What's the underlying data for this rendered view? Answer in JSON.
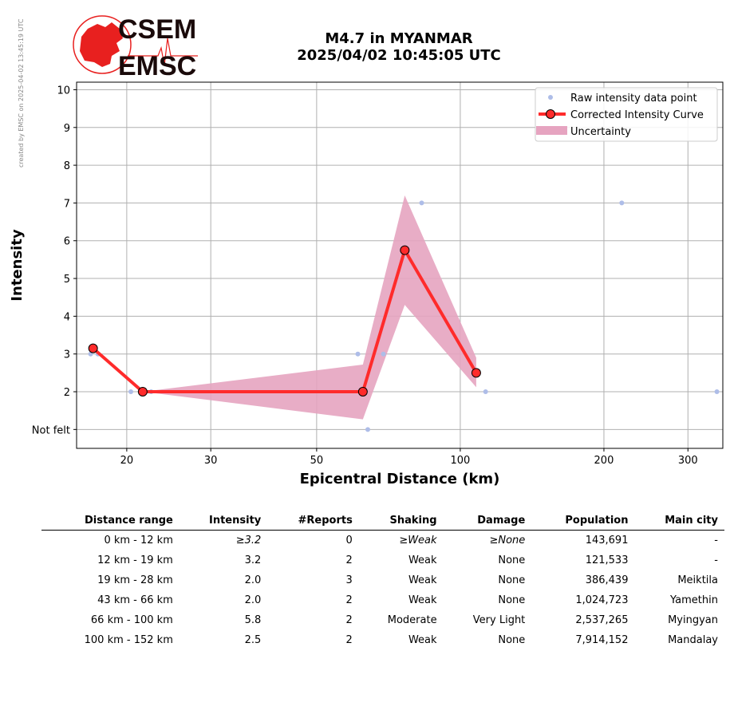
{
  "side_note": "created by EMSC on 2025-04-02 13:45:19 UTC",
  "logo": {
    "line1": "CSEM",
    "line2": "EMSC"
  },
  "title": {
    "line1": "M4.7 in MYANMAR",
    "line2": "2025/04/02 10:45:05 UTC"
  },
  "chart_data": {
    "type": "line",
    "xlabel": "Epicentral Distance (km)",
    "ylabel": "Intensity",
    "xscale": "log",
    "xlim": [
      15.7,
      355
    ],
    "ylim": [
      0.5,
      10.2
    ],
    "x_ticks": [
      20,
      30,
      50,
      100,
      200,
      300
    ],
    "y_ticks": [
      {
        "value": 1,
        "label": "Not felt"
      },
      {
        "value": 2,
        "label": "2"
      },
      {
        "value": 3,
        "label": "3"
      },
      {
        "value": 4,
        "label": "4"
      },
      {
        "value": 5,
        "label": "5"
      },
      {
        "value": 6,
        "label": "6"
      },
      {
        "value": 7,
        "label": "7"
      },
      {
        "value": 8,
        "label": "8"
      },
      {
        "value": 9,
        "label": "9"
      },
      {
        "value": 10,
        "label": "10"
      }
    ],
    "grid": true,
    "legend_position": "top-right",
    "legend": [
      "Raw intensity data point",
      "Corrected Intensity Curve",
      "Uncertainty"
    ],
    "series": [
      {
        "name": "Raw intensity data point",
        "kind": "scatter",
        "color": "#aebde8",
        "points": [
          [
            16.8,
            3
          ],
          [
            17.4,
            3
          ],
          [
            20.4,
            2
          ],
          [
            22.5,
            2
          ],
          [
            61,
            3
          ],
          [
            69,
            3
          ],
          [
            64,
            1
          ],
          [
            83,
            7
          ],
          [
            113,
            2
          ],
          [
            218,
            7
          ],
          [
            345,
            2
          ]
        ]
      },
      {
        "name": "Corrected Intensity Curve",
        "kind": "line",
        "color": "#ff2b2b",
        "points": [
          [
            17.0,
            3.15
          ],
          [
            21.6,
            2.0
          ],
          [
            62.5,
            2.0
          ],
          [
            76.5,
            5.75
          ],
          [
            108,
            2.5
          ]
        ]
      },
      {
        "name": "Uncertainty",
        "kind": "band",
        "color": "#e6a4c0",
        "upper": [
          [
            21.6,
            2.0
          ],
          [
            62.5,
            2.72
          ],
          [
            76.5,
            7.2
          ],
          [
            108,
            2.9
          ]
        ],
        "lower": [
          [
            21.6,
            2.0
          ],
          [
            62.5,
            1.27
          ],
          [
            76.5,
            4.3
          ],
          [
            108,
            2.12
          ]
        ]
      }
    ]
  },
  "table": {
    "headers": [
      "Distance range",
      "Intensity",
      "#Reports",
      "Shaking",
      "Damage",
      "Population",
      "Main city"
    ],
    "rows": [
      [
        "0 km -   12 km",
        "≥3.2",
        "0",
        "≥Weak",
        "≥None",
        "143,691",
        "-"
      ],
      [
        "12 km -   19 km",
        "3.2",
        "2",
        "Weak",
        "None",
        "121,533",
        "-"
      ],
      [
        "19 km -   28 km",
        "2.0",
        "3",
        "Weak",
        "None",
        "386,439",
        "Meiktila"
      ],
      [
        "43 km -   66 km",
        "2.0",
        "2",
        "Weak",
        "None",
        "1,024,723",
        "Yamethin"
      ],
      [
        "66 km -  100 km",
        "5.8",
        "2",
        "Moderate",
        "Very Light",
        "2,537,265",
        "Myingyan"
      ],
      [
        "100 km -  152 km",
        "2.5",
        "2",
        "Weak",
        "None",
        "7,914,152",
        "Mandalay"
      ]
    ]
  },
  "colors": {
    "logo_red": "#e8201f",
    "logo_dark": "#1a0a0a",
    "grid": "#b0b0b0"
  }
}
